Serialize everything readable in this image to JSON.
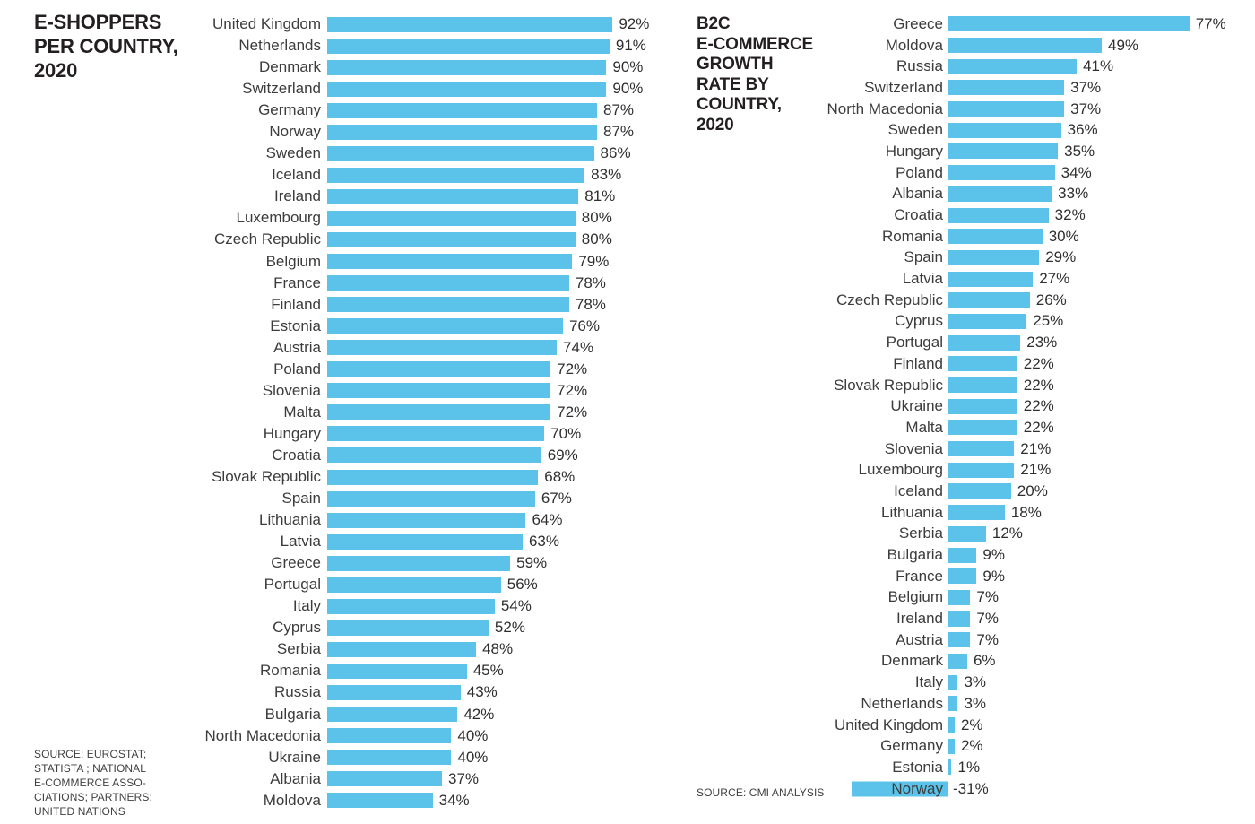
{
  "header_left": {
    "title": "E-SHOPPERS\nPER COUNTRY,\n2020",
    "source": "SOURCE: EUROSTAT;\nSTATISTA ; NATIONAL\nE-COMMERCE ASSO-\nCIATIONS; PARTNERS;\nUNITED NATIONS"
  },
  "header_right": {
    "title": "B2C\nE-COMMERCE\nGROWTH\nRATE BY\nCOUNTRY,\n2020",
    "source": "SOURCE: CMI ANALYSIS"
  },
  "colors": {
    "bar": "#5BC2E9",
    "title": "#231F20",
    "label": "#3C3C3C"
  },
  "chart_data": [
    {
      "type": "bar",
      "orientation": "horizontal",
      "title": "E-SHOPPERS PER COUNTRY, 2020",
      "unit": "%",
      "xlim": [
        0,
        100
      ],
      "grid": false,
      "legend": false,
      "bar_color": "#5BC2E9",
      "categories": [
        "United Kingdom",
        "Netherlands",
        "Denmark",
        "Switzerland",
        "Germany",
        "Norway",
        "Sweden",
        "Iceland",
        "Ireland",
        "Luxembourg",
        "Czech Republic",
        "Belgium",
        "France",
        "Finland",
        "Estonia",
        "Austria",
        "Poland",
        "Slovenia",
        "Malta",
        "Hungary",
        "Croatia",
        "Slovak Republic",
        "Spain",
        "Lithuania",
        "Latvia",
        "Greece",
        "Portugal",
        "Italy",
        "Cyprus",
        "Serbia",
        "Romania",
        "Russia",
        "Bulgaria",
        "North Macedonia",
        "Ukraine",
        "Albania",
        "Moldova"
      ],
      "values": [
        92,
        91,
        90,
        90,
        87,
        87,
        86,
        83,
        81,
        80,
        80,
        79,
        78,
        78,
        76,
        74,
        72,
        72,
        72,
        70,
        69,
        68,
        67,
        64,
        63,
        59,
        56,
        54,
        52,
        48,
        45,
        43,
        42,
        40,
        40,
        37,
        34
      ]
    },
    {
      "type": "bar",
      "orientation": "horizontal",
      "title": "B2C E-COMMERCE GROWTH RATE BY COUNTRY, 2020",
      "unit": "%",
      "xlim": [
        -35,
        85
      ],
      "grid": false,
      "legend": false,
      "bar_color": "#5BC2E9",
      "categories": [
        "Greece",
        "Moldova",
        "Russia",
        "Switzerland",
        "North Macedonia",
        "Sweden",
        "Hungary",
        "Poland",
        "Albania",
        "Croatia",
        "Romania",
        "Spain",
        "Latvia",
        "Czech Republic",
        "Cyprus",
        "Portugal",
        "Finland",
        "Slovak Republic",
        "Ukraine",
        "Malta",
        "Slovenia",
        "Luxembourg",
        "Iceland",
        "Lithuania",
        "Serbia",
        "Bulgaria",
        "France",
        "Belgium",
        "Ireland",
        "Austria",
        "Denmark",
        "Italy",
        "Netherlands",
        "United Kingdom",
        "Germany",
        "Estonia",
        "Norway"
      ],
      "values": [
        77,
        49,
        41,
        37,
        37,
        36,
        35,
        34,
        33,
        32,
        30,
        29,
        27,
        26,
        25,
        23,
        22,
        22,
        22,
        22,
        21,
        21,
        20,
        18,
        12,
        9,
        9,
        7,
        7,
        7,
        6,
        3,
        3,
        2,
        2,
        1,
        -31
      ]
    }
  ]
}
